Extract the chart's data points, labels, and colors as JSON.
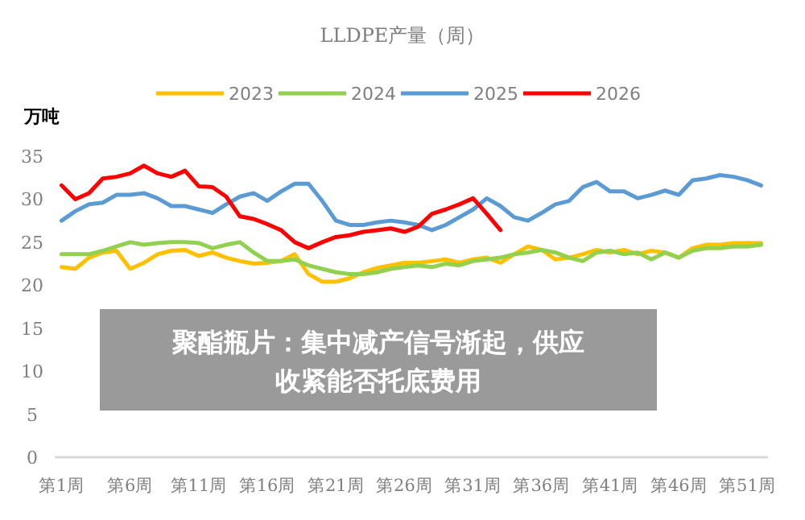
{
  "chart_data": {
    "type": "line",
    "title": "LLDPE产量（周）",
    "ylabel": "万吨",
    "categories": [
      "第1周",
      null,
      null,
      null,
      null,
      "第6周",
      null,
      null,
      null,
      null,
      "第11周",
      null,
      null,
      null,
      null,
      "第16周",
      null,
      null,
      null,
      null,
      "第21周",
      null,
      null,
      null,
      null,
      "第26周",
      null,
      null,
      null,
      null,
      "第31周",
      null,
      null,
      null,
      null,
      "第36周",
      null,
      null,
      null,
      null,
      "第41周",
      null,
      null,
      null,
      null,
      "第46周",
      null,
      null,
      null,
      null,
      "第51周",
      null
    ],
    "series": [
      {
        "name": "2023",
        "color": "#ffc000",
        "values": [
          22.1,
          21.9,
          23.2,
          23.8,
          24,
          21.9,
          22.6,
          23.6,
          24,
          24.1,
          23.4,
          23.8,
          23.2,
          22.8,
          22.5,
          22.6,
          22.8,
          23.6,
          21.3,
          20.4,
          20.4,
          20.8,
          21.5,
          22,
          22.3,
          22.6,
          22.6,
          22.8,
          23,
          22.6,
          23,
          23.2,
          22.6,
          23.6,
          24.5,
          24.1,
          23,
          23.2,
          23.6,
          24.1,
          23.8,
          24.1,
          23.6,
          24,
          23.8,
          23.2,
          24.3,
          24.7,
          24.7,
          24.9,
          24.9,
          24.9
        ]
      },
      {
        "name": "2024",
        "color": "#92d050",
        "values": [
          23.6,
          23.6,
          23.6,
          24,
          24.5,
          25,
          24.7,
          24.9,
          25,
          25,
          24.9,
          24.3,
          24.7,
          25,
          23.8,
          22.8,
          22.8,
          23,
          22.3,
          21.9,
          21.5,
          21.3,
          21.3,
          21.5,
          21.9,
          22.1,
          22.3,
          22.1,
          22.5,
          22.3,
          22.8,
          23,
          23.2,
          23.6,
          23.8,
          24.1,
          23.8,
          23.2,
          22.8,
          23.8,
          24,
          23.6,
          23.8,
          23,
          23.8,
          23.2,
          24,
          24.3,
          24.3,
          24.5,
          24.5,
          24.7
        ]
      },
      {
        "name": "2025",
        "color": "#5b9bd5",
        "values": [
          27.5,
          28.6,
          29.4,
          29.6,
          30.5,
          30.5,
          30.7,
          30.1,
          29.2,
          29.2,
          28.8,
          28.4,
          29.4,
          30.3,
          30.7,
          29.8,
          30.9,
          31.8,
          31.8,
          29.8,
          27.5,
          27,
          27,
          27.3,
          27.5,
          27.3,
          27,
          26.4,
          27,
          27.9,
          28.8,
          30.1,
          29.2,
          27.9,
          27.5,
          28.4,
          29.4,
          29.8,
          31.4,
          32,
          30.9,
          30.9,
          30.1,
          30.5,
          31,
          30.5,
          32.2,
          32.4,
          32.8,
          32.6,
          32.2,
          31.6
        ]
      },
      {
        "name": "2026",
        "color": "#ff0000",
        "values": [
          31.6,
          30,
          30.7,
          32.4,
          32.6,
          33,
          33.9,
          33,
          32.6,
          33.3,
          31.5,
          31.4,
          30.3,
          28,
          27.7,
          27.1,
          26.4,
          25,
          24.3,
          25,
          25.6,
          25.8,
          26.2,
          26.4,
          26.6,
          26.2,
          26.8,
          28.3,
          28.8,
          29.4,
          30.1,
          28.3,
          26.4,
          null,
          null,
          null,
          null,
          null,
          null,
          null,
          null,
          null,
          null,
          null,
          null,
          null,
          null,
          null,
          null,
          null,
          null,
          null
        ]
      }
    ],
    "ylim": [
      0,
      35
    ],
    "yticks": [
      0,
      5,
      10,
      15,
      20,
      25,
      30,
      35
    ],
    "grid": false,
    "legend": "top",
    "marker": "none",
    "line_style": "solid",
    "annotations": [
      "聚酯瓶片：集中减产信号渐起，供应收紧能否托底费用"
    ]
  }
}
